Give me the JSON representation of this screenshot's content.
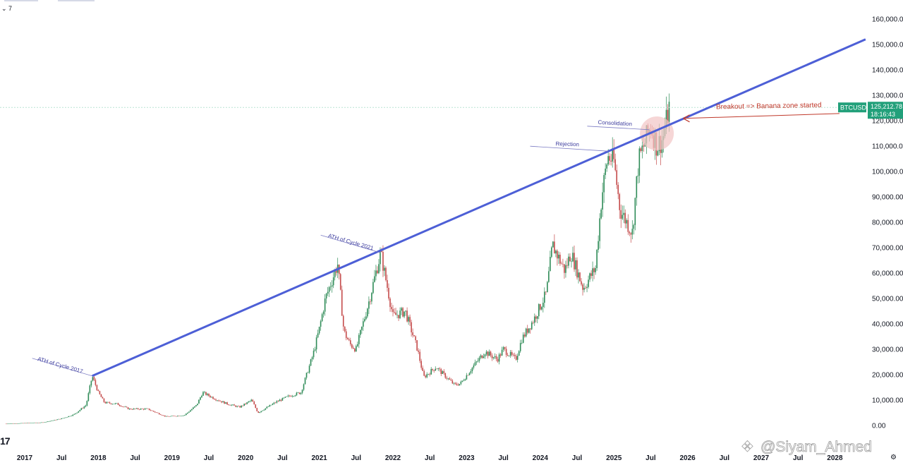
{
  "header": {
    "interval_marker": "⌄ 7"
  },
  "logo_text": "17",
  "watermark": "@Siyam_Ahmed",
  "chart_data": {
    "type": "candlestick",
    "symbol": "BTCUSD",
    "last_price": "125,212.78",
    "countdown": "18:16:43",
    "y_ticks": [
      "160,000.00",
      "150,000.00",
      "140,000.00",
      "130,000.00",
      "120,000.00",
      "110,000.00",
      "100,000.00",
      "90,000.00",
      "80,000.00",
      "70,000.00",
      "60,000.00",
      "50,000.00",
      "40,000.00",
      "30,000.00",
      "20,000.00",
      "10,000.00",
      "0.00"
    ],
    "ylim": [
      0,
      160000
    ],
    "x_ticks": [
      "2017",
      "Jul",
      "2018",
      "Jul",
      "2019",
      "Jul",
      "2020",
      "Jul",
      "2021",
      "Jul",
      "2022",
      "Jul",
      "2023",
      "Jul",
      "2024",
      "Jul",
      "2025",
      "Jul",
      "2026",
      "Jul",
      "2027",
      "Jul",
      "2028"
    ],
    "xlim": [
      "2017-01",
      "2028-06"
    ],
    "price_path": [
      [
        "2016-10",
        700
      ],
      [
        "2017-01",
        950
      ],
      [
        "2017-04",
        1200
      ],
      [
        "2017-07",
        2700
      ],
      [
        "2017-09",
        4300
      ],
      [
        "2017-11",
        8000
      ],
      [
        "2017-12",
        19500
      ],
      [
        "2018-01",
        13000
      ],
      [
        "2018-02",
        9000
      ],
      [
        "2018-04",
        8500
      ],
      [
        "2018-06",
        6500
      ],
      [
        "2018-09",
        6500
      ],
      [
        "2018-11",
        4500
      ],
      [
        "2018-12",
        3500
      ],
      [
        "2019-03",
        4000
      ],
      [
        "2019-05",
        8000
      ],
      [
        "2019-06",
        13000
      ],
      [
        "2019-08",
        10500
      ],
      [
        "2019-10",
        8500
      ],
      [
        "2019-12",
        7200
      ],
      [
        "2020-02",
        10000
      ],
      [
        "2020-03",
        5000
      ],
      [
        "2020-06",
        9300
      ],
      [
        "2020-08",
        11500
      ],
      [
        "2020-10",
        13000
      ],
      [
        "2020-12",
        28000
      ],
      [
        "2021-01",
        38000
      ],
      [
        "2021-02",
        50000
      ],
      [
        "2021-04",
        63500
      ],
      [
        "2021-05",
        37000
      ],
      [
        "2021-06",
        32000
      ],
      [
        "2021-07",
        30000
      ],
      [
        "2021-09",
        48000
      ],
      [
        "2021-11",
        68000
      ],
      [
        "2022-01",
        43000
      ],
      [
        "2022-03",
        45000
      ],
      [
        "2022-05",
        30000
      ],
      [
        "2022-06",
        19000
      ],
      [
        "2022-08",
        23000
      ],
      [
        "2022-11",
        16000
      ],
      [
        "2022-12",
        16500
      ],
      [
        "2023-02",
        23000
      ],
      [
        "2023-04",
        29000
      ],
      [
        "2023-06",
        26000
      ],
      [
        "2023-07",
        30000
      ],
      [
        "2023-09",
        26000
      ],
      [
        "2023-10",
        34000
      ],
      [
        "2023-12",
        42000
      ],
      [
        "2024-02",
        52000
      ],
      [
        "2024-03",
        71000
      ],
      [
        "2024-05",
        61000
      ],
      [
        "2024-06",
        68000
      ],
      [
        "2024-08",
        54000
      ],
      [
        "2024-10",
        62000
      ],
      [
        "2024-11",
        90000
      ],
      [
        "2024-12",
        106000
      ],
      [
        "2025-01",
        104000
      ],
      [
        "2025-02",
        85000
      ],
      [
        "2025-04",
        76000
      ],
      [
        "2025-05",
        104000
      ],
      [
        "2025-07",
        118000
      ],
      [
        "2025-08",
        110000
      ],
      [
        "2025-09",
        113000
      ],
      [
        "2025-10",
        125212
      ]
    ],
    "trendline": {
      "from": [
        "2017-12",
        19500
      ],
      "to": [
        "2028-06",
        152000
      ]
    },
    "current_price_level": 125212.78,
    "annotations": [
      {
        "text": "ATH of Cycle 2017",
        "at": [
          "2017-12",
          19500
        ]
      },
      {
        "text": "ATH of Cycle 2021",
        "at": [
          "2021-11",
          68000
        ]
      },
      {
        "text": "Rejection",
        "at": [
          "2024-12",
          108000
        ]
      },
      {
        "text": "Consolidation",
        "at": [
          "2025-07",
          117000
        ]
      },
      {
        "text": "Breakout => Banana zone started",
        "at": [
          "2025-10",
          122000
        ]
      }
    ],
    "colors": {
      "trendline": "#4d5fd6",
      "up": "#2e8b57",
      "down": "#c44a4a",
      "price_tag": "#22a07a",
      "highlight": "#f2c4c4",
      "arrow": "#c0392b"
    }
  }
}
